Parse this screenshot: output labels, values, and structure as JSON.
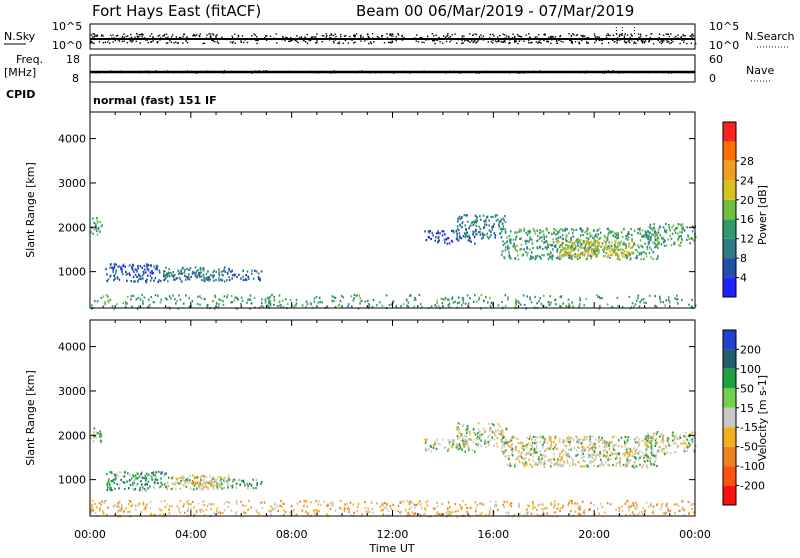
{
  "header": {
    "station": "Fort Hays East (fitACF)",
    "beam_date": "Beam 00  06/Mar/2019 - 07/Mar/2019"
  },
  "noise_panel": {
    "left_label": "N.Sky",
    "right_label": "N.Search",
    "ticks": [
      "10^5",
      "10^0"
    ]
  },
  "freq_panel": {
    "left_label_top": "Freq.",
    "left_label_unit": "[MHz]",
    "right_label": "Nave",
    "left_ticks": [
      18,
      8
    ],
    "right_ticks": [
      60,
      0
    ]
  },
  "cpid": {
    "label": "CPID",
    "mode": "normal (fast) 151 IF"
  },
  "x_axis": {
    "label": "Time UT",
    "ticks": [
      "00:00",
      "04:00",
      "08:00",
      "12:00",
      "16:00",
      "20:00",
      "00:00"
    ],
    "range_hours": [
      0,
      24
    ]
  },
  "colors": {
    "power": [
      "#1f1fff",
      "#1f4fa8",
      "#2e7d86",
      "#2f9a6a",
      "#6fbf3a",
      "#d8c020",
      "#f0a020",
      "#ff7000",
      "#ff2020"
    ],
    "velocity_pos": [
      "#2040d0",
      "#206070",
      "#20a040",
      "#70d050"
    ],
    "velocity_neutral": "#c8c8c8",
    "velocity_neg": [
      "#f0b020",
      "#f08020",
      "#ff5010",
      "#ff1010"
    ]
  },
  "chart_data": [
    {
      "type": "heatmap",
      "name": "power-panel",
      "ylabel": "Slant Range [km]",
      "yticks": [
        1000,
        2000,
        3000,
        4000
      ],
      "ylim": [
        180,
        4600
      ],
      "xlim": [
        0,
        24
      ],
      "colorbar_label": "Power [dB]",
      "colorbar_ticks": [
        "4",
        "8",
        "12",
        "16",
        "20",
        "24",
        "28"
      ],
      "regions": [
        {
          "t0": 0.0,
          "t1": 0.5,
          "r0": 1850,
          "r1": 2250,
          "level": 3,
          "density": 0.5
        },
        {
          "t0": 0.6,
          "t1": 2.8,
          "r0": 780,
          "r1": 1200,
          "level": 1,
          "density": 0.55
        },
        {
          "t0": 2.8,
          "t1": 5.5,
          "r0": 800,
          "r1": 1120,
          "level": 2,
          "density": 0.7
        },
        {
          "t0": 5.5,
          "t1": 6.8,
          "r0": 820,
          "r1": 1050,
          "level": 1,
          "density": 0.5
        },
        {
          "t0": 13.2,
          "t1": 15.3,
          "r0": 1650,
          "r1": 1950,
          "level": 1,
          "density": 0.45
        },
        {
          "t0": 14.5,
          "t1": 16.5,
          "r0": 1750,
          "r1": 2300,
          "level": 2,
          "density": 0.5
        },
        {
          "t0": 16.3,
          "t1": 22.5,
          "r0": 1300,
          "r1": 2000,
          "level": 3,
          "density": 0.55
        },
        {
          "t0": 18.5,
          "t1": 21.5,
          "r0": 1350,
          "r1": 1750,
          "level": 5,
          "density": 0.6
        },
        {
          "t0": 22.0,
          "t1": 24.0,
          "r0": 1600,
          "r1": 2100,
          "level": 3,
          "density": 0.5
        },
        {
          "t0": 0.0,
          "t1": 24.0,
          "r0": 190,
          "r1": 500,
          "level": 3,
          "density": 0.25
        }
      ]
    },
    {
      "type": "heatmap",
      "name": "velocity-panel",
      "ylabel": "Slant Range [km]",
      "yticks": [
        1000,
        2000,
        3000,
        4000
      ],
      "ylim": [
        180,
        4600
      ],
      "xlim": [
        0,
        24
      ],
      "colorbar_label": "Velocity [m s-1]",
      "colorbar_ticks": [
        "200",
        "100",
        "50",
        "15",
        "-15",
        "-50",
        "-100",
        "-200"
      ],
      "regions": [
        {
          "t0": 0.0,
          "t1": 0.5,
          "r0": 1850,
          "r1": 2250,
          "level": 4,
          "density": 0.5
        },
        {
          "t0": 0.6,
          "t1": 3.0,
          "r0": 780,
          "r1": 1200,
          "level": 3,
          "density": 0.6
        },
        {
          "t0": 3.0,
          "t1": 5.5,
          "r0": 800,
          "r1": 1120,
          "level": 4,
          "density": 0.7
        },
        {
          "t0": 4.0,
          "t1": 5.0,
          "r0": 850,
          "r1": 1100,
          "level": 5,
          "density": 0.5
        },
        {
          "t0": 5.5,
          "t1": 6.8,
          "r0": 820,
          "r1": 1050,
          "level": 3,
          "density": 0.5
        },
        {
          "t0": 13.2,
          "t1": 15.3,
          "r0": 1650,
          "r1": 1950,
          "level": 4,
          "density": 0.5
        },
        {
          "t0": 14.5,
          "t1": 16.5,
          "r0": 1750,
          "r1": 2300,
          "level": 4,
          "density": 0.5
        },
        {
          "t0": 16.3,
          "t1": 22.5,
          "r0": 1300,
          "r1": 2000,
          "level": 4,
          "density": 0.6
        },
        {
          "t0": 22.0,
          "t1": 24.0,
          "r0": 1600,
          "r1": 2100,
          "level": 4,
          "density": 0.55
        },
        {
          "t0": 0.0,
          "t1": 24.0,
          "r0": 190,
          "r1": 550,
          "level": 5,
          "density": 0.3
        }
      ]
    }
  ]
}
